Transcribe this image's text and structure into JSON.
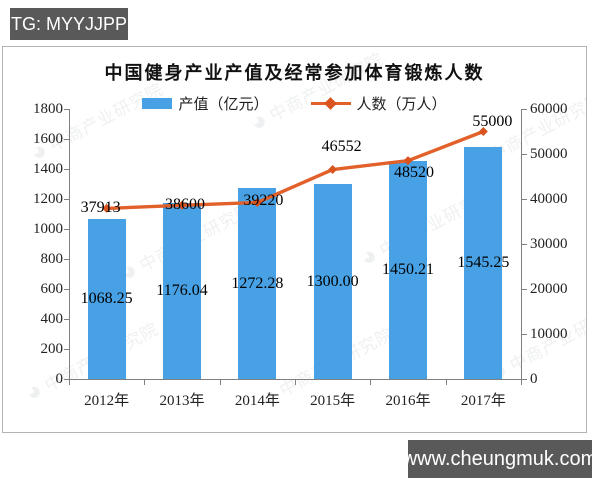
{
  "badges": {
    "tg": "TG: MYYJJPP",
    "site": "www.cheungmuk.com"
  },
  "watermark": {
    "text": "中商产业研究院"
  },
  "chart_data": {
    "type": "combo",
    "title": "中国健身产业产值及经常参加体育锻炼人数",
    "categories": [
      "2012年",
      "2013年",
      "2014年",
      "2015年",
      "2016年",
      "2017年"
    ],
    "series": [
      {
        "name": "产值（亿元）",
        "type": "bar",
        "axis": "left",
        "color": "#47a1e4",
        "values": [
          1068.25,
          1176.04,
          1272.28,
          1300.0,
          1450.21,
          1545.25
        ],
        "labels": [
          "1068.25",
          "1176.04",
          "1272.28",
          "1300.00",
          "1450.21",
          "1545.25"
        ]
      },
      {
        "name": "人数（万人）",
        "type": "line",
        "axis": "right",
        "color": "#e2612b",
        "marker_color": "#d9541e",
        "values": [
          37913,
          38600,
          39220,
          46552,
          48520,
          55000
        ],
        "labels": [
          "37913",
          "38600",
          "39220",
          "46552",
          "48520",
          "55000"
        ]
      }
    ],
    "left_axis": {
      "min": 0,
      "max": 1800,
      "step": 200
    },
    "right_axis": {
      "min": 0,
      "max": 60000,
      "step": 10000
    },
    "legend_position": "top",
    "grid": false
  }
}
